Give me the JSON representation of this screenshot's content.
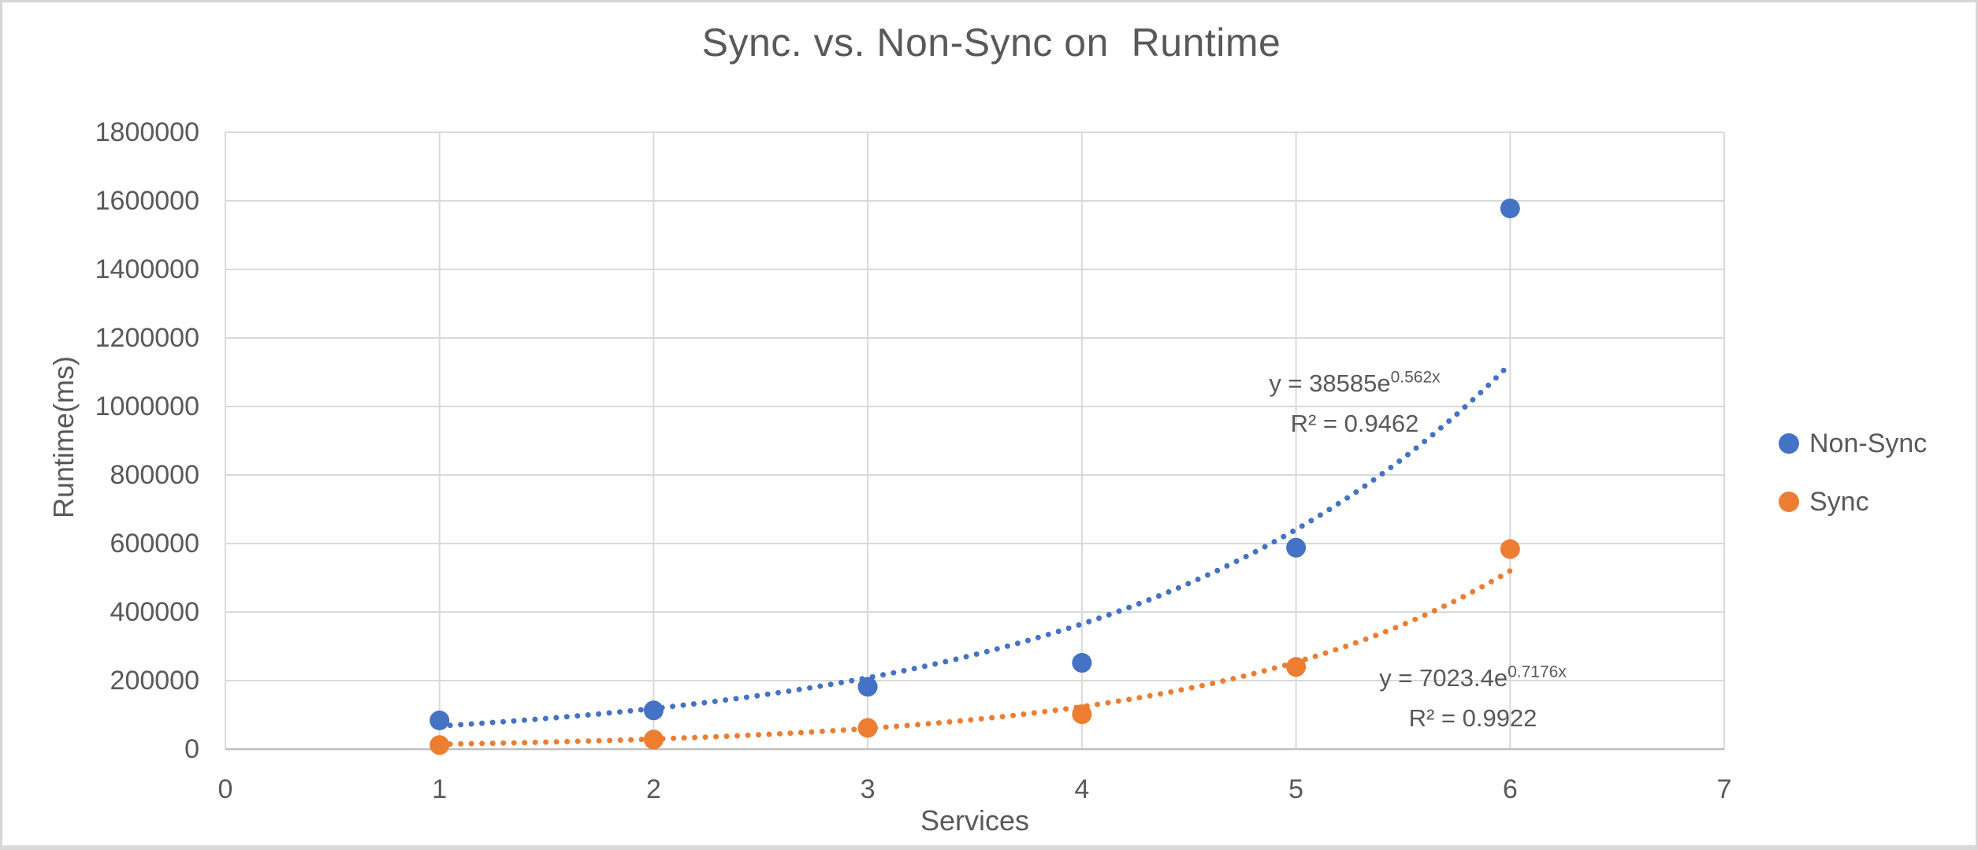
{
  "chart_data": {
    "type": "scatter",
    "title": "Sync. vs. Non-Sync on  Runtime",
    "xlabel": "Services",
    "ylabel": "Runtime(ms)",
    "xlim": [
      0,
      7
    ],
    "ylim": [
      0,
      1800000
    ],
    "grid": true,
    "legend_position": "right",
    "x_ticks": [
      0,
      1,
      2,
      3,
      4,
      5,
      6,
      7
    ],
    "x_tick_labels": [
      "0",
      "1",
      "2",
      "3",
      "4",
      "5",
      "6",
      "7"
    ],
    "y_ticks": [
      0,
      200000,
      400000,
      600000,
      800000,
      1000000,
      1200000,
      1400000,
      1600000,
      1800000
    ],
    "y_tick_labels": [
      "0",
      "200000",
      "400000",
      "600000",
      "800000",
      "1000000",
      "1200000",
      "1400000",
      "1600000",
      "1800000"
    ],
    "colors": {
      "grid": "#d9d9d9",
      "axis": "#bfbfbf",
      "text": "#595959"
    },
    "series": [
      {
        "key": "non-sync",
        "name": "Non-Sync",
        "color": "#4472C4",
        "marker": "circle",
        "x": [
          1,
          2,
          3,
          4,
          5,
          6
        ],
        "y": [
          84000,
          113000,
          182000,
          252000,
          588000,
          1578000
        ],
        "trendline": {
          "type": "exponential",
          "a": 38585,
          "b": 0.562,
          "range": [
            1,
            6
          ],
          "eq_prefix": "y = 38585e",
          "eq_sup": "0.562x",
          "r2": "R² = 0.9462"
        }
      },
      {
        "key": "sync",
        "name": "Sync",
        "color": "#ED7D31",
        "marker": "circle",
        "x": [
          1,
          2,
          3,
          4,
          5,
          6
        ],
        "y": [
          12000,
          28000,
          62000,
          102000,
          240000,
          584000
        ],
        "trendline": {
          "type": "exponential",
          "a": 7023.4,
          "b": 0.7176,
          "range": [
            1,
            6
          ],
          "eq_prefix": "y = 7023.4e",
          "eq_sup": "0.7176x",
          "r2": "R² = 0.9922"
        }
      }
    ]
  }
}
